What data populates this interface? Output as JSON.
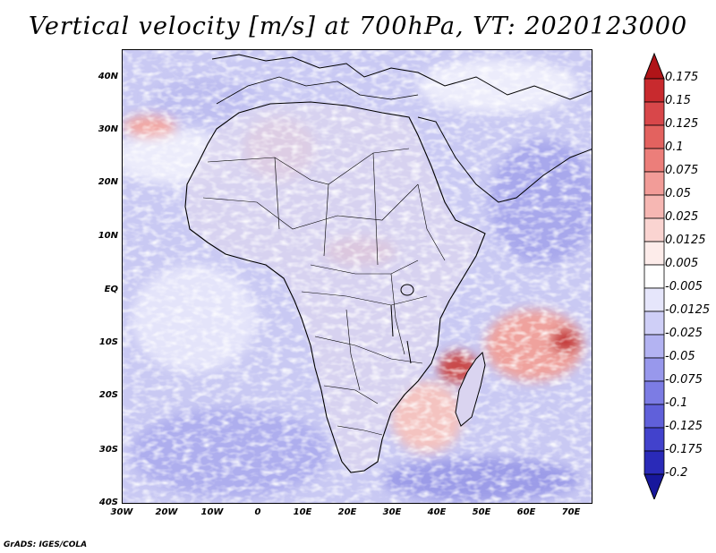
{
  "title": "Vertical velocity [m/s] at 700hPa, VT: 2020123000",
  "footer": "GrADS: IGES/COLA",
  "map": {
    "region": "Africa",
    "lat_labels": [
      "40N",
      "30N",
      "20N",
      "10N",
      "EQ",
      "10S",
      "20S",
      "30S",
      "40S"
    ],
    "lon_labels": [
      "30W",
      "20W",
      "10W",
      "0",
      "10E",
      "20E",
      "30E",
      "40E",
      "50E",
      "60E",
      "70E"
    ]
  },
  "colorbar": {
    "labels": [
      "0.175",
      "0.15",
      "0.125",
      "0.1",
      "0.075",
      "0.05",
      "0.025",
      "0.0125",
      "0.005",
      "-0.005",
      "-0.0125",
      "-0.025",
      "-0.05",
      "-0.075",
      "-0.1",
      "-0.125",
      "-0.175",
      "-0.2"
    ],
    "colors": [
      "#b01418",
      "#c82a2e",
      "#d8474a",
      "#e3625f",
      "#ec7e7a",
      "#f29c98",
      "#f6b7b3",
      "#fad4d1",
      "#fdecea",
      "#ffffff",
      "#e6e6fb",
      "#cfcff7",
      "#b3b3f2",
      "#9898ec",
      "#7c7ce4",
      "#6060da",
      "#4242cc",
      "#2a2ab8",
      "#17179c"
    ]
  }
}
